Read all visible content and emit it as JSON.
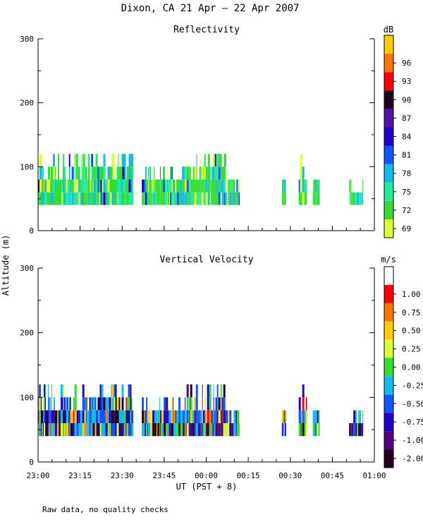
{
  "title": "Dixon, CA 21 Apr — 22 Apr 2007",
  "footnote": "Raw data, no quality checks",
  "chart_data": [
    {
      "type": "heatmap",
      "title": "Reflectivity",
      "ylabel": "Altitude (m)",
      "xlabel": "UT  (PST + 8)",
      "ylim": [
        0,
        300
      ],
      "yticks": [
        0,
        100,
        200,
        300
      ],
      "xlim_minutes": [
        0,
        120
      ],
      "xticks": [
        {
          "m": 0,
          "label": "23:00"
        },
        {
          "m": 15,
          "label": "23:15"
        },
        {
          "m": 30,
          "label": "23:30"
        },
        {
          "m": 45,
          "label": "23:45"
        },
        {
          "m": 60,
          "label": "00:00"
        },
        {
          "m": 75,
          "label": "00:15"
        },
        {
          "m": 90,
          "label": "00:30"
        },
        {
          "m": 105,
          "label": "00:45"
        },
        {
          "m": 120,
          "label": "01:00"
        }
      ],
      "colorbar": {
        "unit": "dB",
        "labels": [
          "69",
          "72",
          "75",
          "78",
          "81",
          "84",
          "87",
          "90",
          "93",
          "96"
        ],
        "colors": [
          "#ddff33",
          "#33dd33",
          "#22ee99",
          "#11bbee",
          "#1155ff",
          "#2200cc",
          "#5511aa",
          "#220022",
          "#ff0000",
          "#ff7700",
          "#ffcc00"
        ]
      },
      "segments": [
        {
          "start": 0,
          "end": 11,
          "alt_min": 40,
          "alt_max": 100,
          "tops": [
            80,
            100,
            120
          ]
        },
        {
          "start": 11,
          "end": 19,
          "alt_min": 40,
          "alt_max": 100,
          "tops": [
            80,
            100,
            120
          ]
        },
        {
          "start": 19,
          "end": 34,
          "alt_min": 40,
          "alt_max": 100,
          "tops": [
            80,
            100,
            120
          ]
        },
        {
          "start": 37,
          "end": 53,
          "alt_min": 40,
          "alt_max": 80,
          "tops": [
            80,
            100
          ]
        },
        {
          "start": 53,
          "end": 67,
          "alt_min": 40,
          "alt_max": 80,
          "tops": [
            80,
            100,
            120
          ]
        },
        {
          "start": 67,
          "end": 72,
          "alt_min": 40,
          "alt_max": 60,
          "tops": [
            60,
            80
          ]
        },
        {
          "start": 87,
          "end": 88.5,
          "alt_min": 40,
          "alt_max": 80,
          "tops": [
            80
          ]
        },
        {
          "start": 93,
          "end": 96,
          "alt_min": 40,
          "alt_max": 80,
          "tops": [
            80,
            100,
            120
          ]
        },
        {
          "start": 98,
          "end": 100.5,
          "alt_min": 40,
          "alt_max": 80,
          "tops": [
            80
          ]
        },
        {
          "start": 111,
          "end": 116,
          "alt_min": 40,
          "alt_max": 60,
          "tops": [
            60,
            80
          ]
        }
      ]
    },
    {
      "type": "heatmap",
      "title": "Vertical Velocity",
      "ylabel": "Altitude (m)",
      "xlabel": "UT  (PST + 8)",
      "ylim": [
        0,
        300
      ],
      "yticks": [
        0,
        100,
        200,
        300
      ],
      "xlim_minutes": [
        0,
        120
      ],
      "xticks": [
        {
          "m": 0,
          "label": "23:00"
        },
        {
          "m": 15,
          "label": "23:15"
        },
        {
          "m": 30,
          "label": "23:30"
        },
        {
          "m": 45,
          "label": "23:45"
        },
        {
          "m": 60,
          "label": "00:00"
        },
        {
          "m": 75,
          "label": "00:15"
        },
        {
          "m": 90,
          "label": "00:30"
        },
        {
          "m": 105,
          "label": "00:45"
        },
        {
          "m": 120,
          "label": "01:00"
        }
      ],
      "colorbar": {
        "unit": "m/s",
        "labels": [
          "-2.00",
          "-1.00",
          "-0.75",
          "-0.50",
          "-0.25",
          "0.00",
          "0.25",
          "0.50",
          "0.75",
          "1.00"
        ],
        "colors": [
          "#220022",
          "#550088",
          "#2200cc",
          "#1155ff",
          "#11bbee",
          "#33dd33",
          "#ddff33",
          "#ffcc00",
          "#ff7700",
          "#ff0000",
          "#ffffff"
        ]
      },
      "segments": [
        {
          "start": 0,
          "end": 11,
          "alt_min": 40,
          "alt_max": 100,
          "tops": [
            80,
            100,
            120
          ]
        },
        {
          "start": 11,
          "end": 19,
          "alt_min": 40,
          "alt_max": 100,
          "tops": [
            80,
            100,
            120
          ]
        },
        {
          "start": 19,
          "end": 34,
          "alt_min": 40,
          "alt_max": 100,
          "tops": [
            80,
            100,
            120
          ]
        },
        {
          "start": 37,
          "end": 53,
          "alt_min": 40,
          "alt_max": 80,
          "tops": [
            80,
            100
          ]
        },
        {
          "start": 53,
          "end": 67,
          "alt_min": 40,
          "alt_max": 80,
          "tops": [
            80,
            100,
            120
          ]
        },
        {
          "start": 67,
          "end": 72,
          "alt_min": 40,
          "alt_max": 60,
          "tops": [
            60,
            80
          ]
        },
        {
          "start": 87,
          "end": 88.5,
          "alt_min": 40,
          "alt_max": 80,
          "tops": [
            80
          ]
        },
        {
          "start": 93,
          "end": 96,
          "alt_min": 40,
          "alt_max": 80,
          "tops": [
            80,
            100,
            120
          ]
        },
        {
          "start": 98,
          "end": 100.5,
          "alt_min": 40,
          "alt_max": 80,
          "tops": [
            80
          ]
        },
        {
          "start": 111,
          "end": 116,
          "alt_min": 40,
          "alt_max": 60,
          "tops": [
            60,
            80
          ]
        }
      ]
    }
  ]
}
